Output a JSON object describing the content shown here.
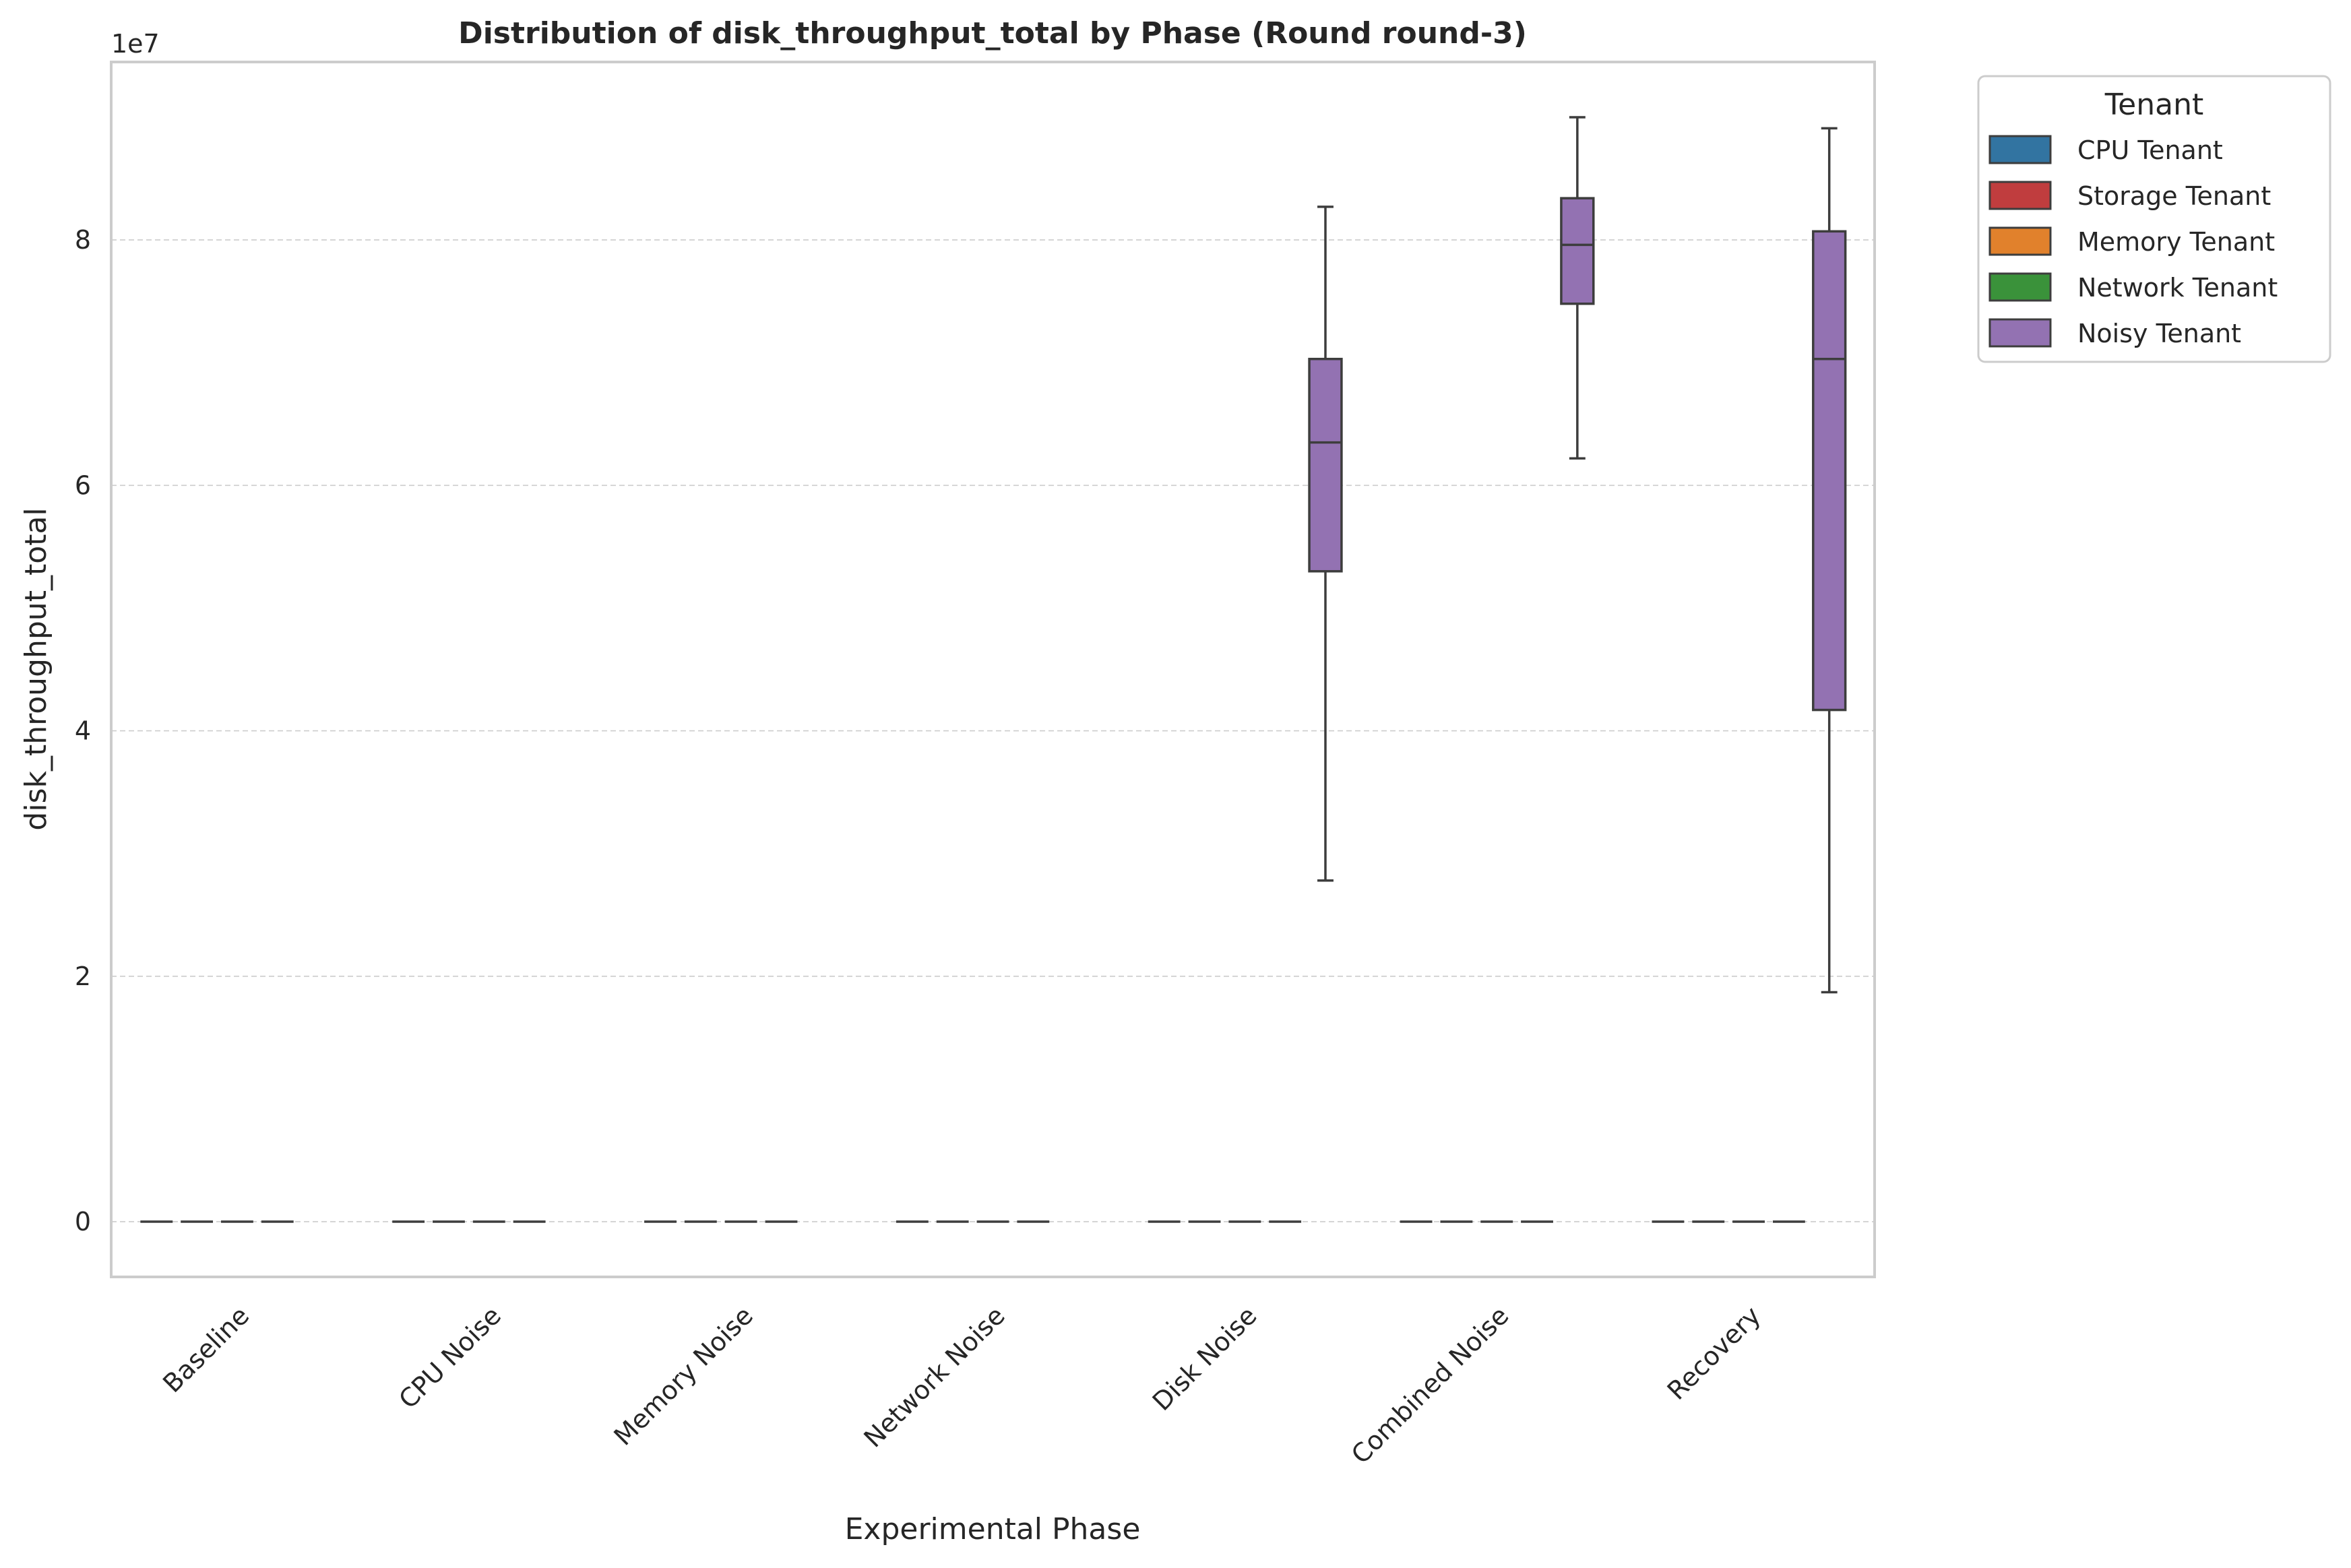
{
  "chart_data": {
    "type": "box",
    "title": "Distribution of disk_throughput_total by Phase (Round round-3)",
    "xlabel": "Experimental Phase",
    "ylabel": "disk_throughput_total",
    "offset_label": "1e7",
    "ylim": [
      -0.45,
      9.45
    ],
    "y_scale_factor": 10000000,
    "yticks": [
      0,
      2,
      4,
      6,
      8
    ],
    "grid": true,
    "categories": [
      "Baseline",
      "CPU Noise",
      "Memory Noise",
      "Network Noise",
      "Disk Noise",
      "Combined Noise",
      "Recovery"
    ],
    "legend": {
      "title": "Tenant",
      "placement": "outside-upper-right",
      "entries": [
        {
          "name": "CPU Tenant",
          "color": "#3274a1"
        },
        {
          "name": "Storage Tenant",
          "color": "#c03d3e"
        },
        {
          "name": "Memory Tenant",
          "color": "#e1812c"
        },
        {
          "name": "Network Tenant",
          "color": "#3a923a"
        },
        {
          "name": "Noisy Tenant",
          "color": "#9372b2"
        }
      ]
    },
    "series": [
      {
        "name": "CPU Tenant",
        "boxes": [
          {
            "min": 0,
            "q1": 0,
            "median": 0,
            "q3": 0,
            "max": 0
          },
          {
            "min": 0,
            "q1": 0,
            "median": 0,
            "q3": 0,
            "max": 0
          },
          {
            "min": 0,
            "q1": 0,
            "median": 0,
            "q3": 0,
            "max": 0
          },
          {
            "min": 0,
            "q1": 0,
            "median": 0,
            "q3": 0,
            "max": 0
          },
          {
            "min": 0,
            "q1": 0,
            "median": 0,
            "q3": 0,
            "max": 0
          },
          {
            "min": 0,
            "q1": 0,
            "median": 0,
            "q3": 0,
            "max": 0
          },
          {
            "min": 0,
            "q1": 0,
            "median": 0,
            "q3": 0,
            "max": 0
          }
        ]
      },
      {
        "name": "Storage Tenant",
        "boxes": [
          {
            "min": 0,
            "q1": 0,
            "median": 0,
            "q3": 0,
            "max": 0
          },
          {
            "min": 0,
            "q1": 0,
            "median": 0,
            "q3": 0,
            "max": 0
          },
          {
            "min": 0,
            "q1": 0,
            "median": 0,
            "q3": 0,
            "max": 0
          },
          {
            "min": 0,
            "q1": 0,
            "median": 0,
            "q3": 0,
            "max": 0
          },
          {
            "min": 0,
            "q1": 0,
            "median": 0,
            "q3": 0,
            "max": 0
          },
          {
            "min": 0,
            "q1": 0,
            "median": 0,
            "q3": 0,
            "max": 0
          },
          {
            "min": 0,
            "q1": 0,
            "median": 0,
            "q3": 0,
            "max": 0
          }
        ]
      },
      {
        "name": "Memory Tenant",
        "boxes": [
          {
            "min": 0,
            "q1": 0,
            "median": 0,
            "q3": 0,
            "max": 0
          },
          {
            "min": 0,
            "q1": 0,
            "median": 0,
            "q3": 0,
            "max": 0
          },
          {
            "min": 0,
            "q1": 0,
            "median": 0,
            "q3": 0,
            "max": 0
          },
          {
            "min": 0,
            "q1": 0,
            "median": 0,
            "q3": 0,
            "max": 0
          },
          {
            "min": 0,
            "q1": 0,
            "median": 0,
            "q3": 0,
            "max": 0
          },
          {
            "min": 0,
            "q1": 0,
            "median": 0,
            "q3": 0,
            "max": 0
          },
          {
            "min": 0,
            "q1": 0,
            "median": 0,
            "q3": 0,
            "max": 0
          }
        ]
      },
      {
        "name": "Network Tenant",
        "boxes": [
          {
            "min": 0,
            "q1": 0,
            "median": 0,
            "q3": 0,
            "max": 0
          },
          {
            "min": 0,
            "q1": 0,
            "median": 0,
            "q3": 0,
            "max": 0
          },
          {
            "min": 0,
            "q1": 0,
            "median": 0,
            "q3": 0,
            "max": 0
          },
          {
            "min": 0,
            "q1": 0,
            "median": 0,
            "q3": 0,
            "max": 0
          },
          {
            "min": 0,
            "q1": 0,
            "median": 0,
            "q3": 0,
            "max": 0
          },
          {
            "min": 0,
            "q1": 0,
            "median": 0,
            "q3": 0,
            "max": 0
          },
          {
            "min": 0,
            "q1": 0,
            "median": 0,
            "q3": 0,
            "max": 0
          }
        ]
      },
      {
        "name": "Noisy Tenant",
        "boxes": [
          null,
          null,
          null,
          null,
          {
            "min": 2.78,
            "q1": 5.3,
            "median": 6.35,
            "q3": 7.03,
            "max": 8.27
          },
          {
            "min": 6.22,
            "q1": 7.48,
            "median": 7.96,
            "q3": 8.34,
            "max": 9.0
          },
          {
            "min": 1.87,
            "q1": 4.17,
            "median": 7.03,
            "q3": 8.07,
            "max": 8.91
          }
        ]
      }
    ]
  }
}
